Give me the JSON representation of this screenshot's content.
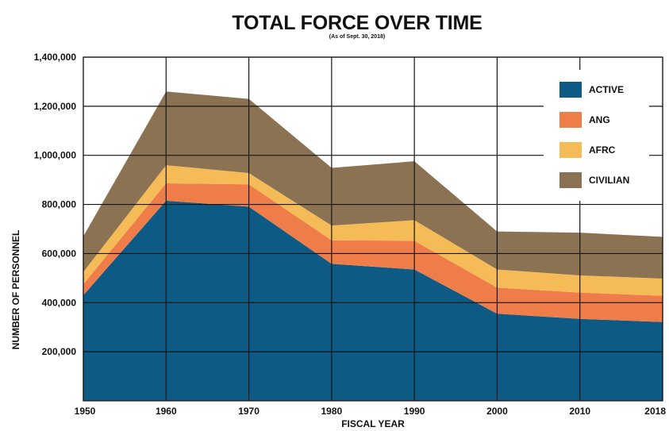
{
  "chart_data": {
    "type": "area",
    "stacked": true,
    "title": "TOTAL FORCE OVER TIME",
    "subtitle": "(As of Sept. 30, 2018)",
    "xlabel": "FISCAL YEAR",
    "ylabel": "NUMBER OF PERSONNEL",
    "x": [
      "1950",
      "1960",
      "1970",
      "1980",
      "1990",
      "2000",
      "2010",
      "2018"
    ],
    "ylim": [
      0,
      1400000
    ],
    "yticks": [
      200000,
      400000,
      600000,
      800000,
      1000000,
      1200000,
      1400000
    ],
    "ytick_labels": [
      "200,000",
      "400,000",
      "600,000",
      "800,000",
      "1,000,000",
      "1,200,000",
      "1,400,000"
    ],
    "grid": true,
    "legend_position": "top-right",
    "series": [
      {
        "name": "ACTIVE",
        "color": "#0d5a85",
        "values": [
          430000,
          815000,
          791000,
          558000,
          535000,
          355000,
          334000,
          321000
        ]
      },
      {
        "name": "ANG",
        "color": "#ee7d4a",
        "values": [
          45000,
          71000,
          91000,
          96000,
          117000,
          106000,
          107000,
          107000
        ]
      },
      {
        "name": "AFRC",
        "color": "#f5bb57",
        "values": [
          50000,
          74000,
          46000,
          60000,
          84000,
          74000,
          70000,
          70000
        ]
      },
      {
        "name": "CIVILIAN",
        "color": "#8b7253",
        "values": [
          145000,
          300000,
          302000,
          235000,
          240000,
          155000,
          174000,
          170000
        ]
      }
    ]
  }
}
